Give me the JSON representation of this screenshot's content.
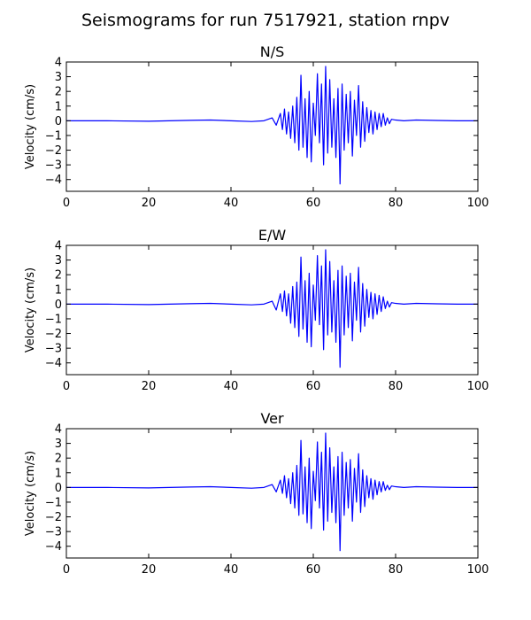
{
  "chart_data": {
    "suptitle": "Seismograms for run 7517921, station rnpv",
    "line_color": "#0000ff",
    "panels": [
      {
        "type": "line",
        "title": "N/S",
        "xlabel": "",
        "ylabel": "Velocity (cm/s)",
        "xlim": [
          0,
          100
        ],
        "ylim": [
          -4.8,
          4
        ],
        "xticks": [
          0,
          20,
          40,
          60,
          80,
          100
        ],
        "yticks": [
          -4,
          -3,
          -2,
          -1,
          0,
          1,
          2,
          3,
          4
        ],
        "grid": false,
        "x": [
          0,
          10,
          20,
          25,
          30,
          35,
          40,
          45,
          48,
          50,
          51,
          52,
          52.5,
          53,
          53.5,
          54,
          54.5,
          55,
          55.5,
          56,
          56.5,
          57,
          57.5,
          58,
          58.5,
          59,
          59.5,
          60,
          60.5,
          61,
          61.5,
          62,
          62.5,
          63,
          63.5,
          64,
          64.5,
          65,
          65.5,
          66,
          66.5,
          67,
          67.5,
          68,
          68.5,
          69,
          69.5,
          70,
          70.5,
          71,
          71.5,
          72,
          72.5,
          73,
          73.5,
          74,
          74.5,
          75,
          75.5,
          76,
          76.5,
          77,
          77.5,
          78,
          78.5,
          79,
          80,
          82,
          85,
          90,
          95,
          100
        ],
        "y": [
          0,
          0,
          -0.03,
          0,
          0.03,
          0.05,
          0,
          -0.05,
          0,
          0.2,
          -0.3,
          0.5,
          -0.6,
          0.8,
          -0.9,
          0.6,
          -1.2,
          1.0,
          -1.5,
          1.6,
          -2.0,
          3.1,
          -1.8,
          1.5,
          -2.5,
          2.0,
          -2.8,
          1.2,
          -1.0,
          3.2,
          -1.5,
          2.5,
          -3.0,
          3.7,
          -2.2,
          2.8,
          -1.8,
          1.5,
          -2.5,
          2.2,
          -4.3,
          2.5,
          -2.0,
          1.8,
          -1.5,
          2.0,
          -2.4,
          1.4,
          -1.0,
          2.4,
          -1.8,
          1.3,
          -1.4,
          0.9,
          -0.8,
          0.7,
          -0.9,
          0.6,
          -0.6,
          0.5,
          -0.4,
          0.5,
          -0.3,
          0.2,
          -0.2,
          0.1,
          0.05,
          0,
          0.05,
          0.02,
          0,
          0
        ]
      },
      {
        "type": "line",
        "title": "E/W",
        "xlabel": "",
        "ylabel": "Velocity (cm/s)",
        "xlim": [
          0,
          100
        ],
        "ylim": [
          -4.8,
          4
        ],
        "xticks": [
          0,
          20,
          40,
          60,
          80,
          100
        ],
        "yticks": [
          -4,
          -3,
          -2,
          -1,
          0,
          1,
          2,
          3,
          4
        ],
        "grid": false,
        "x": [
          0,
          10,
          20,
          25,
          30,
          35,
          40,
          45,
          48,
          50,
          51,
          52,
          52.5,
          53,
          53.5,
          54,
          54.5,
          55,
          55.5,
          56,
          56.5,
          57,
          57.5,
          58,
          58.5,
          59,
          59.5,
          60,
          60.5,
          61,
          61.5,
          62,
          62.5,
          63,
          63.5,
          64,
          64.5,
          65,
          65.5,
          66,
          66.5,
          67,
          67.5,
          68,
          68.5,
          69,
          69.5,
          70,
          70.5,
          71,
          71.5,
          72,
          72.5,
          73,
          73.5,
          74,
          74.5,
          75,
          75.5,
          76,
          76.5,
          77,
          77.5,
          78,
          78.5,
          79,
          80,
          82,
          85,
          90,
          95,
          100
        ],
        "y": [
          0,
          0,
          -0.03,
          0,
          0.03,
          0.05,
          0,
          -0.05,
          0,
          0.2,
          -0.4,
          0.7,
          -0.5,
          0.9,
          -0.8,
          0.7,
          -1.3,
          1.2,
          -1.6,
          1.5,
          -2.2,
          3.2,
          -1.7,
          1.6,
          -2.6,
          2.1,
          -2.9,
          1.3,
          -1.1,
          3.3,
          -1.4,
          2.6,
          -3.1,
          3.7,
          -2.1,
          2.9,
          -1.9,
          1.6,
          -2.6,
          2.3,
          -4.3,
          2.6,
          -2.1,
          1.9,
          -1.6,
          2.1,
          -2.5,
          1.5,
          -1.1,
          2.5,
          -1.9,
          1.4,
          -1.5,
          1.0,
          -0.9,
          0.8,
          -1.0,
          0.7,
          -0.7,
          0.6,
          -0.5,
          0.5,
          -0.3,
          0.2,
          -0.2,
          0.1,
          0.05,
          0,
          0.05,
          0.02,
          0,
          0
        ]
      },
      {
        "type": "line",
        "title": "Ver",
        "xlabel": "",
        "ylabel": "Velocity (cm/s)",
        "xlim": [
          0,
          100
        ],
        "ylim": [
          -4.8,
          4
        ],
        "xticks": [
          0,
          20,
          40,
          60,
          80,
          100
        ],
        "yticks": [
          -4,
          -3,
          -2,
          -1,
          0,
          1,
          2,
          3,
          4
        ],
        "grid": false,
        "x": [
          0,
          10,
          20,
          25,
          30,
          35,
          40,
          45,
          48,
          50,
          51,
          52,
          52.5,
          53,
          53.5,
          54,
          54.5,
          55,
          55.5,
          56,
          56.5,
          57,
          57.5,
          58,
          58.5,
          59,
          59.5,
          60,
          60.5,
          61,
          61.5,
          62,
          62.5,
          63,
          63.5,
          64,
          64.5,
          65,
          65.5,
          66,
          66.5,
          67,
          67.5,
          68,
          68.5,
          69,
          69.5,
          70,
          70.5,
          71,
          71.5,
          72,
          72.5,
          73,
          73.5,
          74,
          74.5,
          75,
          75.5,
          76,
          76.5,
          77,
          77.5,
          78,
          78.5,
          79,
          80,
          82,
          85,
          90,
          95,
          100
        ],
        "y": [
          0,
          0,
          -0.03,
          0,
          0.03,
          0.05,
          0,
          -0.05,
          0,
          0.2,
          -0.3,
          0.5,
          -0.4,
          0.8,
          -0.7,
          0.6,
          -1.1,
          1.0,
          -1.4,
          1.5,
          -1.9,
          3.2,
          -1.8,
          1.4,
          -2.4,
          2.0,
          -2.8,
          1.1,
          -0.9,
          3.1,
          -1.4,
          2.4,
          -2.9,
          3.7,
          -2.3,
          2.7,
          -1.7,
          1.4,
          -2.4,
          2.1,
          -4.3,
          2.4,
          -1.9,
          1.7,
          -1.4,
          1.9,
          -2.3,
          1.3,
          -1.0,
          2.3,
          -1.7,
          1.2,
          -1.3,
          0.8,
          -0.7,
          0.6,
          -0.8,
          0.5,
          -0.5,
          0.4,
          -0.3,
          0.4,
          -0.2,
          0.15,
          -0.15,
          0.1,
          0.05,
          0,
          0.05,
          0.02,
          0,
          0
        ]
      }
    ]
  }
}
